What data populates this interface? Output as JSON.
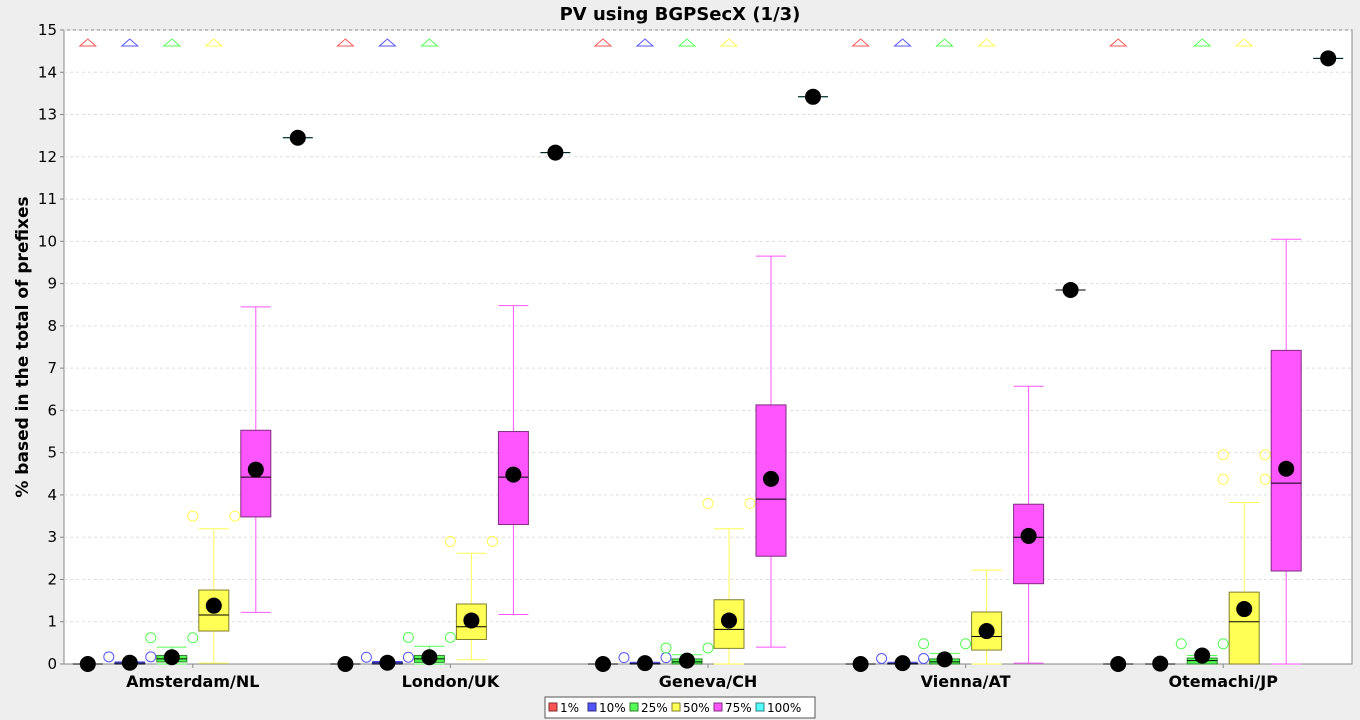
{
  "chart_data": {
    "type": "box",
    "title": "PV using BGPSecX  (1/3)",
    "xlabel": "",
    "ylabel": "% based in the total of prefixes",
    "ylim": [
      0,
      15
    ],
    "yticks": [
      "0",
      "1",
      "2",
      "3",
      "4",
      "5",
      "6",
      "7",
      "8",
      "9",
      "10",
      "11",
      "12",
      "13",
      "14",
      "15"
    ],
    "grid": true,
    "legend_position": "bottom-center",
    "categories": [
      "Amsterdam/NL",
      "London/UK",
      "Geneva/CH",
      "Vienna/AT",
      "Otemachi/JP"
    ],
    "series": [
      {
        "name": "1%",
        "color": "#ff5555",
        "boxes": [
          {
            "q1": 0,
            "median": 0,
            "q3": 0,
            "wmin": 0,
            "wmax": 0,
            "mean": 0.0,
            "outliers": [],
            "far_out": true
          },
          {
            "q1": 0,
            "median": 0,
            "q3": 0,
            "wmin": 0,
            "wmax": 0,
            "mean": 0.0,
            "outliers": [],
            "far_out": true
          },
          {
            "q1": 0,
            "median": 0,
            "q3": 0,
            "wmin": 0,
            "wmax": 0,
            "mean": 0.0,
            "outliers": [],
            "far_out": true
          },
          {
            "q1": 0,
            "median": 0,
            "q3": 0,
            "wmin": 0,
            "wmax": 0,
            "mean": 0.0,
            "outliers": [],
            "far_out": true
          },
          {
            "q1": 0,
            "median": 0,
            "q3": 0,
            "wmin": 0,
            "wmax": 0,
            "mean": 0.0,
            "outliers": [],
            "far_out": true
          }
        ]
      },
      {
        "name": "10%",
        "color": "#5555ff",
        "boxes": [
          {
            "q1": 0,
            "median": 0,
            "q3": 0.03,
            "wmin": 0,
            "wmax": 0.05,
            "mean": 0.03,
            "outliers": [
              0.17
            ],
            "far_out": true
          },
          {
            "q1": 0,
            "median": 0,
            "q3": 0.04,
            "wmin": 0,
            "wmax": 0.06,
            "mean": 0.03,
            "outliers": [
              0.16
            ],
            "far_out": true
          },
          {
            "q1": 0,
            "median": 0,
            "q3": 0.02,
            "wmin": 0,
            "wmax": 0.04,
            "mean": 0.02,
            "outliers": [
              0.15
            ],
            "far_out": true
          },
          {
            "q1": 0,
            "median": 0,
            "q3": 0.02,
            "wmin": 0,
            "wmax": 0.04,
            "mean": 0.02,
            "outliers": [
              0.13
            ],
            "far_out": true
          },
          {
            "q1": 0,
            "median": 0,
            "q3": 0,
            "wmin": 0,
            "wmax": 0,
            "mean": 0.01,
            "outliers": [],
            "far_out": false
          }
        ]
      },
      {
        "name": "25%",
        "color": "#55ff55",
        "boxes": [
          {
            "q1": 0.05,
            "median": 0.12,
            "q3": 0.2,
            "wmin": 0,
            "wmax": 0.4,
            "mean": 0.16,
            "outliers": [
              0.62
            ],
            "far_out": true
          },
          {
            "q1": 0.04,
            "median": 0.12,
            "q3": 0.2,
            "wmin": 0,
            "wmax": 0.42,
            "mean": 0.16,
            "outliers": [
              0.63
            ],
            "far_out": true
          },
          {
            "q1": 0,
            "median": 0.05,
            "q3": 0.12,
            "wmin": 0,
            "wmax": 0.22,
            "mean": 0.08,
            "outliers": [
              0.38
            ],
            "far_out": true
          },
          {
            "q1": 0,
            "median": 0.05,
            "q3": 0.12,
            "wmin": 0,
            "wmax": 0.25,
            "mean": 0.11,
            "outliers": [
              0.48
            ],
            "far_out": true
          },
          {
            "q1": 0,
            "median": 0.08,
            "q3": 0.14,
            "wmin": 0,
            "wmax": 0.2,
            "mean": 0.2,
            "outliers": [
              0.48
            ],
            "far_out": true
          }
        ]
      },
      {
        "name": "50%",
        "color": "#ffff55",
        "boxes": [
          {
            "q1": 0.78,
            "median": 1.16,
            "q3": 1.75,
            "wmin": 0.02,
            "wmax": 3.2,
            "mean": 1.38,
            "outliers": [
              3.5
            ],
            "far_out": true
          },
          {
            "q1": 0.58,
            "median": 0.88,
            "q3": 1.42,
            "wmin": 0.1,
            "wmax": 2.62,
            "mean": 1.03,
            "outliers": [
              2.9
            ],
            "far_out": false
          },
          {
            "q1": 0.37,
            "median": 0.82,
            "q3": 1.52,
            "wmin": 0,
            "wmax": 3.2,
            "mean": 1.03,
            "outliers": [
              3.8
            ],
            "far_out": true
          },
          {
            "q1": 0.33,
            "median": 0.65,
            "q3": 1.23,
            "wmin": 0,
            "wmax": 2.22,
            "mean": 0.78,
            "outliers": [],
            "far_out": true
          },
          {
            "q1": 0,
            "median": 1.0,
            "q3": 1.7,
            "wmin": 0,
            "wmax": 3.82,
            "mean": 1.3,
            "outliers": [
              4.37,
              4.95
            ],
            "far_out": true
          }
        ]
      },
      {
        "name": "75%",
        "color": "#ff55ff",
        "boxes": [
          {
            "q1": 3.48,
            "median": 4.42,
            "q3": 5.53,
            "wmin": 1.22,
            "wmax": 8.45,
            "mean": 4.6,
            "outliers": [],
            "far_out": false
          },
          {
            "q1": 3.3,
            "median": 4.42,
            "q3": 5.5,
            "wmin": 1.17,
            "wmax": 8.48,
            "mean": 4.48,
            "outliers": [],
            "far_out": false
          },
          {
            "q1": 2.55,
            "median": 3.9,
            "q3": 6.13,
            "wmin": 0.4,
            "wmax": 9.65,
            "mean": 4.38,
            "outliers": [],
            "far_out": false
          },
          {
            "q1": 1.9,
            "median": 3.0,
            "q3": 3.78,
            "wmin": 0.02,
            "wmax": 6.57,
            "mean": 3.03,
            "outliers": [],
            "far_out": false
          },
          {
            "q1": 2.2,
            "median": 4.28,
            "q3": 7.42,
            "wmin": 0,
            "wmax": 10.05,
            "mean": 4.62,
            "outliers": [],
            "far_out": false
          }
        ]
      },
      {
        "name": "100%",
        "color": "#55ffff",
        "boxes": [
          {
            "q1": 12.45,
            "median": 12.45,
            "q3": 12.45,
            "wmin": 12.45,
            "wmax": 12.45,
            "mean": 12.45,
            "outliers": [],
            "far_out": false
          },
          {
            "q1": 12.1,
            "median": 12.1,
            "q3": 12.1,
            "wmin": 12.1,
            "wmax": 12.1,
            "mean": 12.1,
            "outliers": [],
            "far_out": false
          },
          {
            "q1": 13.42,
            "median": 13.42,
            "q3": 13.42,
            "wmin": 13.42,
            "wmax": 13.42,
            "mean": 13.42,
            "outliers": [],
            "far_out": false
          },
          {
            "q1": 8.85,
            "median": 8.85,
            "q3": 8.85,
            "wmin": 8.85,
            "wmax": 8.85,
            "mean": 8.85,
            "outliers": [],
            "far_out": false
          },
          {
            "q1": 14.33,
            "median": 14.33,
            "q3": 14.33,
            "wmin": 14.33,
            "wmax": 14.33,
            "mean": 14.33,
            "outliers": [],
            "far_out": false
          }
        ]
      }
    ]
  }
}
